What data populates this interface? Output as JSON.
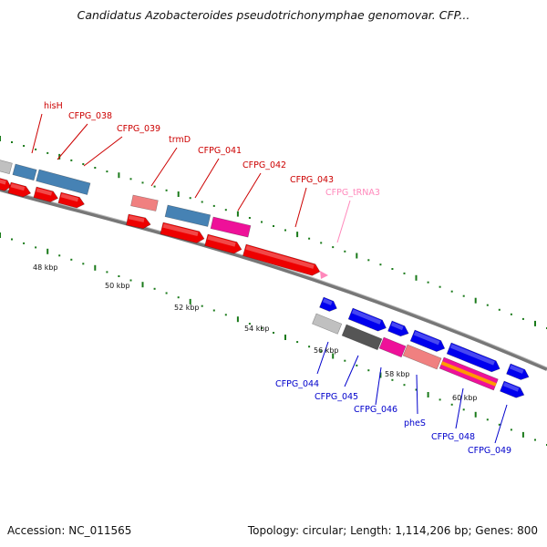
{
  "title": "Candidatus Azobacteroides pseudotrichonymphae genomovar. CFP...",
  "footer": {
    "accession": "Accession: NC_011565",
    "stats": "Topology: circular; Length: 1,114,206 bp; Genes: 800"
  },
  "colors": {
    "label_red": "#cc0000",
    "label_blue": "#0000cc",
    "label_pink": "#ff88bb",
    "tick_green": "#1a7a1a",
    "backbone": "#777777",
    "cds_red": "#ee0000",
    "gene_blue": "#0000ee",
    "steel_blue": "#4682b4",
    "magenta": "#ee1199",
    "salmon": "#f08080",
    "light_gray": "#c0c0c0",
    "dark_gray": "#555555",
    "orange": "#ff9900"
  },
  "scale_labels": [
    "48 kbp",
    "50 kbp",
    "52 kbp",
    "54 kbp",
    "56 kbp",
    "58 kbp",
    "60 kbp"
  ],
  "gene_labels": [
    {
      "text": "hisH",
      "color": "red"
    },
    {
      "text": "CFPG_038",
      "color": "red"
    },
    {
      "text": "CFPG_039",
      "color": "red"
    },
    {
      "text": "trmD",
      "color": "red"
    },
    {
      "text": "CFPG_041",
      "color": "red"
    },
    {
      "text": "CFPG_042",
      "color": "red"
    },
    {
      "text": "CFPG_043",
      "color": "red"
    },
    {
      "text": "CFPG_tRNA3",
      "color": "pink"
    },
    {
      "text": "CFPG_044",
      "color": "blue"
    },
    {
      "text": "CFPG_045",
      "color": "blue"
    },
    {
      "text": "CFPG_046",
      "color": "blue"
    },
    {
      "text": "pheS",
      "color": "blue"
    },
    {
      "text": "CFPG_048",
      "color": "blue"
    },
    {
      "text": "CFPG_049",
      "color": "blue"
    }
  ]
}
